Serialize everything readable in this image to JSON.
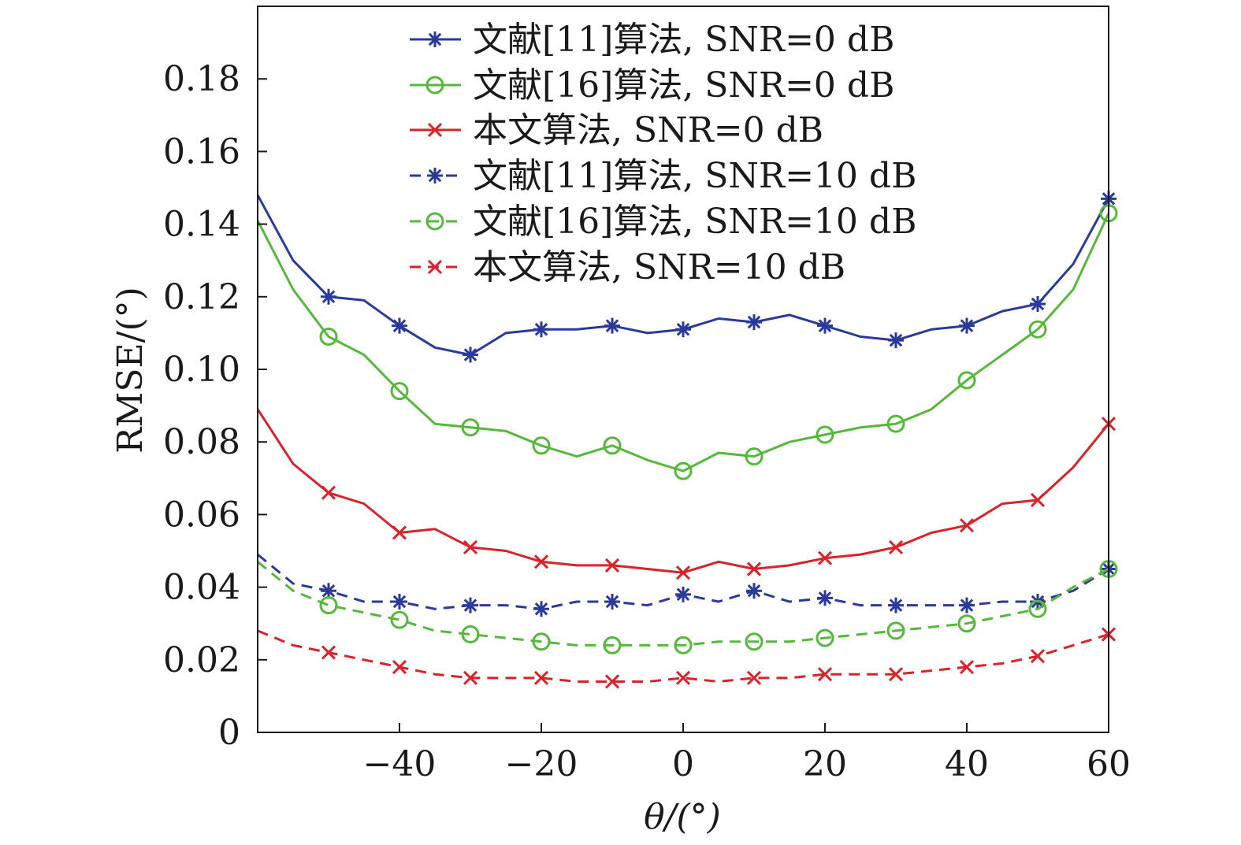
{
  "chart_data": {
    "type": "line",
    "xlabel": "θ/(°)",
    "ylabel": "RMSE/(°)",
    "xlim": [
      -60,
      60
    ],
    "ylim": [
      0,
      0.2
    ],
    "xticks": [
      -40,
      -20,
      0,
      20,
      40,
      60
    ],
    "xtick_labels": [
      "−40",
      "−20",
      "0",
      "20",
      "40",
      "60"
    ],
    "yticks": [
      0,
      0.02,
      0.04,
      0.06,
      0.08,
      0.1,
      0.12,
      0.14,
      0.16,
      0.18
    ],
    "ytick_labels": [
      "0",
      "0.02",
      "0.04",
      "0.06",
      "0.08",
      "0.10",
      "0.12",
      "0.14",
      "0.16",
      "0.18"
    ],
    "grid": false,
    "legend_position": "top",
    "x": [
      -60,
      -55,
      -50,
      -45,
      -40,
      -35,
      -30,
      -25,
      -20,
      -15,
      -10,
      -5,
      0,
      5,
      10,
      15,
      20,
      25,
      30,
      35,
      40,
      45,
      50,
      55,
      60
    ],
    "series": [
      {
        "name": "文献[11]算法, SNR=0 dB",
        "color": "#2b3a9a",
        "dash": "solid",
        "marker": "asterisk",
        "values": [
          0.148,
          0.13,
          0.12,
          0.119,
          0.112,
          0.106,
          0.104,
          0.11,
          0.111,
          0.111,
          0.112,
          0.11,
          0.111,
          0.114,
          0.113,
          0.115,
          0.112,
          0.109,
          0.108,
          0.111,
          0.112,
          0.116,
          0.118,
          0.129,
          0.147
        ]
      },
      {
        "name": "文献[16]算法, SNR=0 dB",
        "color": "#55b83b",
        "dash": "solid",
        "marker": "circle",
        "values": [
          0.141,
          0.122,
          0.109,
          0.104,
          0.094,
          0.085,
          0.084,
          0.083,
          0.079,
          0.076,
          0.079,
          0.075,
          0.072,
          0.077,
          0.076,
          0.08,
          0.082,
          0.084,
          0.085,
          0.089,
          0.097,
          0.104,
          0.111,
          0.122,
          0.143
        ]
      },
      {
        "name": "本文算法, SNR=0 dB",
        "color": "#d8232a",
        "dash": "solid",
        "marker": "x",
        "values": [
          0.089,
          0.074,
          0.066,
          0.063,
          0.055,
          0.056,
          0.051,
          0.05,
          0.047,
          0.046,
          0.046,
          0.045,
          0.044,
          0.047,
          0.045,
          0.046,
          0.048,
          0.049,
          0.051,
          0.055,
          0.057,
          0.063,
          0.064,
          0.073,
          0.085
        ]
      },
      {
        "name": "文献[11]算法, SNR=10 dB",
        "color": "#2b3a9a",
        "dash": "dashed",
        "marker": "asterisk",
        "values": [
          0.049,
          0.041,
          0.039,
          0.036,
          0.036,
          0.034,
          0.035,
          0.035,
          0.034,
          0.036,
          0.036,
          0.035,
          0.038,
          0.036,
          0.039,
          0.036,
          0.037,
          0.035,
          0.035,
          0.035,
          0.035,
          0.036,
          0.036,
          0.039,
          0.045
        ]
      },
      {
        "name": "文献[16]算法, SNR=10 dB",
        "color": "#55b83b",
        "dash": "dashed",
        "marker": "circle",
        "values": [
          0.047,
          0.039,
          0.035,
          0.033,
          0.031,
          0.028,
          0.027,
          0.026,
          0.025,
          0.024,
          0.024,
          0.024,
          0.024,
          0.025,
          0.025,
          0.025,
          0.026,
          0.027,
          0.028,
          0.029,
          0.03,
          0.032,
          0.034,
          0.04,
          0.045
        ]
      },
      {
        "name": "本文算法, SNR=10 dB",
        "color": "#d8232a",
        "dash": "dashed",
        "marker": "x",
        "values": [
          0.028,
          0.024,
          0.022,
          0.02,
          0.018,
          0.016,
          0.015,
          0.015,
          0.015,
          0.014,
          0.014,
          0.014,
          0.015,
          0.014,
          0.015,
          0.015,
          0.016,
          0.016,
          0.016,
          0.017,
          0.018,
          0.019,
          0.021,
          0.024,
          0.027
        ]
      }
    ]
  }
}
